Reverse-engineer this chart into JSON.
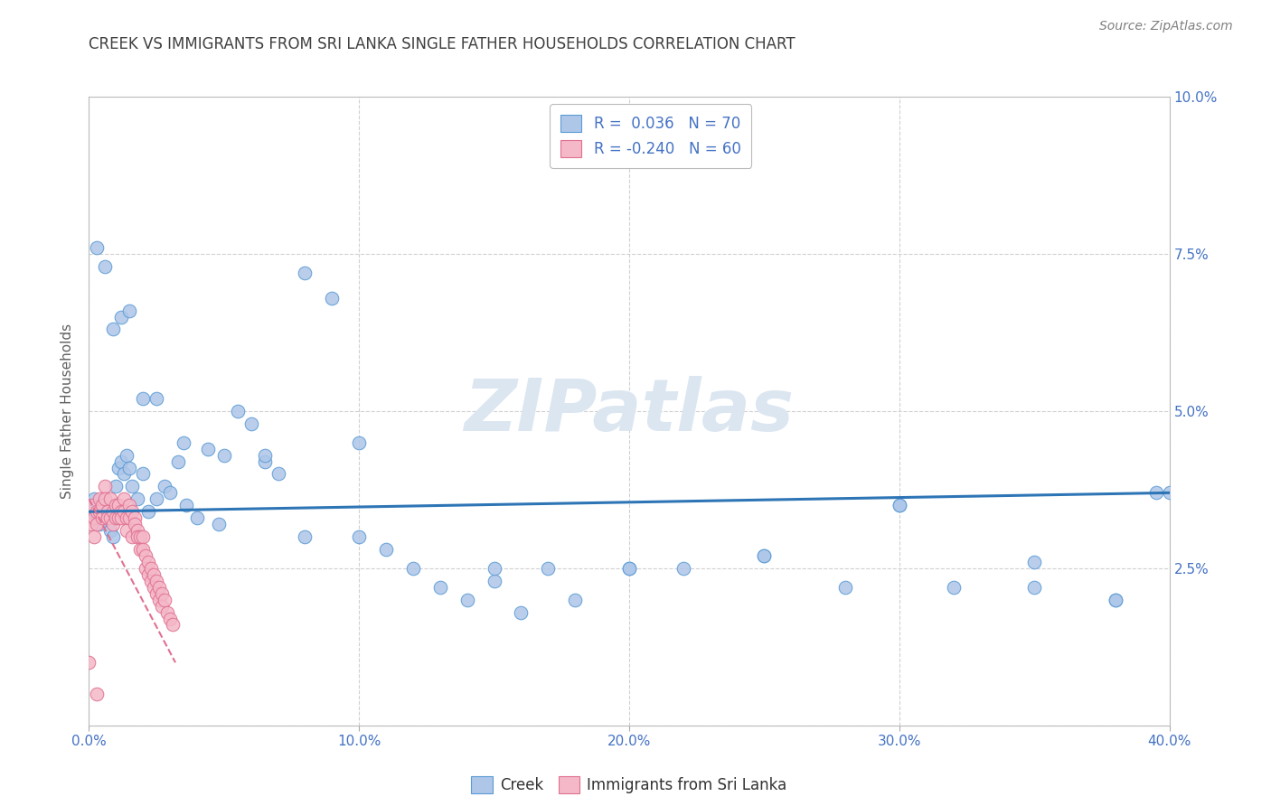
{
  "title": "CREEK VS IMMIGRANTS FROM SRI LANKA SINGLE FATHER HOUSEHOLDS CORRELATION CHART",
  "source": "Source: ZipAtlas.com",
  "ylabel": "Single Father Households",
  "xlim": [
    0.0,
    0.4
  ],
  "ylim": [
    0.0,
    0.1
  ],
  "xticks": [
    0.0,
    0.1,
    0.2,
    0.3,
    0.4
  ],
  "yticks": [
    0.0,
    0.025,
    0.05,
    0.075,
    0.1
  ],
  "xticklabels": [
    "0.0%",
    "10.0%",
    "20.0%",
    "30.0%",
    "40.0%"
  ],
  "yticklabels_right": [
    "",
    "2.5%",
    "5.0%",
    "7.5%",
    "10.0%"
  ],
  "creek_color": "#aec6e8",
  "sri_lanka_color": "#f4b8c8",
  "creek_edge_color": "#5b9bd5",
  "sri_lanka_edge_color": "#e07090",
  "creek_line_color": "#2e75b6",
  "sri_lanka_line_color": "#e07090",
  "title_color": "#404040",
  "axis_label_color": "#606060",
  "tick_color": "#4472c4",
  "source_color": "#808080",
  "grid_color": "#d0d0d0",
  "watermark_color": "#dce6f1",
  "background_color": "#ffffff",
  "creek_x": [
    0.001,
    0.002,
    0.003,
    0.004,
    0.005,
    0.006,
    0.007,
    0.008,
    0.009,
    0.01,
    0.011,
    0.012,
    0.013,
    0.014,
    0.015,
    0.016,
    0.018,
    0.02,
    0.022,
    0.025,
    0.028,
    0.03,
    0.033,
    0.036,
    0.04,
    0.044,
    0.048,
    0.055,
    0.06,
    0.065,
    0.07,
    0.08,
    0.09,
    0.1,
    0.11,
    0.12,
    0.13,
    0.14,
    0.15,
    0.16,
    0.17,
    0.18,
    0.2,
    0.22,
    0.25,
    0.28,
    0.3,
    0.32,
    0.35,
    0.38,
    0.4,
    0.003,
    0.006,
    0.009,
    0.012,
    0.015,
    0.02,
    0.025,
    0.035,
    0.05,
    0.065,
    0.08,
    0.1,
    0.15,
    0.2,
    0.25,
    0.3,
    0.35,
    0.38,
    0.395
  ],
  "creek_y": [
    0.034,
    0.036,
    0.033,
    0.032,
    0.035,
    0.034,
    0.033,
    0.031,
    0.03,
    0.038,
    0.041,
    0.042,
    0.04,
    0.043,
    0.041,
    0.038,
    0.036,
    0.04,
    0.034,
    0.036,
    0.038,
    0.037,
    0.042,
    0.035,
    0.033,
    0.044,
    0.032,
    0.05,
    0.048,
    0.042,
    0.04,
    0.072,
    0.068,
    0.045,
    0.028,
    0.025,
    0.022,
    0.02,
    0.023,
    0.018,
    0.025,
    0.02,
    0.025,
    0.025,
    0.027,
    0.022,
    0.035,
    0.022,
    0.026,
    0.02,
    0.037,
    0.076,
    0.073,
    0.063,
    0.065,
    0.066,
    0.052,
    0.052,
    0.045,
    0.043,
    0.043,
    0.03,
    0.03,
    0.025,
    0.025,
    0.027,
    0.035,
    0.022,
    0.02,
    0.037
  ],
  "sri_lanka_x": [
    0.0,
    0.001,
    0.001,
    0.002,
    0.002,
    0.003,
    0.003,
    0.004,
    0.004,
    0.005,
    0.005,
    0.006,
    0.006,
    0.007,
    0.007,
    0.008,
    0.008,
    0.009,
    0.009,
    0.01,
    0.01,
    0.011,
    0.011,
    0.012,
    0.012,
    0.013,
    0.013,
    0.014,
    0.014,
    0.015,
    0.015,
    0.016,
    0.016,
    0.017,
    0.017,
    0.018,
    0.018,
    0.019,
    0.019,
    0.02,
    0.02,
    0.021,
    0.021,
    0.022,
    0.022,
    0.023,
    0.023,
    0.024,
    0.024,
    0.025,
    0.025,
    0.026,
    0.026,
    0.027,
    0.027,
    0.028,
    0.029,
    0.03,
    0.031,
    0.003
  ],
  "sri_lanka_y": [
    0.01,
    0.035,
    0.032,
    0.03,
    0.033,
    0.034,
    0.032,
    0.036,
    0.034,
    0.035,
    0.033,
    0.038,
    0.036,
    0.034,
    0.033,
    0.036,
    0.033,
    0.034,
    0.032,
    0.035,
    0.033,
    0.035,
    0.033,
    0.034,
    0.033,
    0.036,
    0.034,
    0.033,
    0.031,
    0.035,
    0.033,
    0.034,
    0.03,
    0.033,
    0.032,
    0.031,
    0.03,
    0.03,
    0.028,
    0.03,
    0.028,
    0.027,
    0.025,
    0.026,
    0.024,
    0.025,
    0.023,
    0.024,
    0.022,
    0.023,
    0.021,
    0.022,
    0.02,
    0.021,
    0.019,
    0.02,
    0.018,
    0.017,
    0.016,
    0.005
  ],
  "creek_trend_x": [
    0.0,
    0.4
  ],
  "creek_trend_y": [
    0.034,
    0.037
  ],
  "sri_lanka_trend_x": [
    0.0,
    0.032
  ],
  "sri_lanka_trend_y": [
    0.036,
    0.01
  ]
}
